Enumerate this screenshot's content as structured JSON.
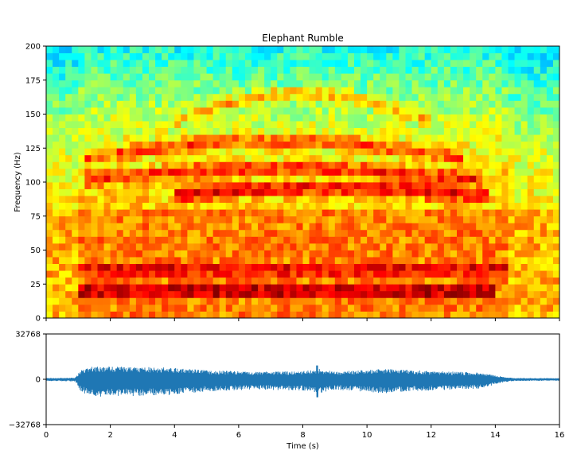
{
  "chart_data": [
    {
      "type": "heatmap",
      "title": "Elephant Rumble",
      "xlabel": "",
      "ylabel": "Frequency (Hz)",
      "xlim": [
        0,
        16
      ],
      "ylim": [
        0,
        200
      ],
      "y_ticks": [
        "0",
        "25",
        "50",
        "75",
        "100",
        "125",
        "150",
        "175",
        "200"
      ],
      "x_tick_labels_shown": false,
      "colormap": "jet",
      "grid": false,
      "time_bins": 80,
      "frequency_bins": 40,
      "bands": [
        {
          "f0": 20,
          "f1": 20,
          "t0": 1.0,
          "t1": 14.0,
          "level": 0.98
        },
        {
          "f0": 36,
          "f1": 36,
          "t0": 1.0,
          "t1": 14.4,
          "level": 0.92
        },
        {
          "f0": 56,
          "f1": 58,
          "t0": 1.0,
          "t1": 14.5,
          "level": 0.74
        },
        {
          "f0": 75,
          "f1": 78,
          "t0": 1.0,
          "t1": 14.5,
          "level": 0.76
        },
        {
          "f0": 90,
          "f1": 96,
          "t0": 4.0,
          "t1": 13.8,
          "level": 0.9
        },
        {
          "f0": 102,
          "f1": 110,
          "t0": 1.2,
          "t1": 13.5,
          "level": 0.86
        },
        {
          "f0": 118,
          "f1": 130,
          "t0": 1.2,
          "t1": 13.0,
          "level": 0.82
        },
        {
          "f0": 145,
          "f1": 165,
          "t0": 4.0,
          "t1": 12.0,
          "level": 0.72
        }
      ]
    },
    {
      "type": "line",
      "title": "",
      "xlabel": "Time (s)",
      "ylabel": "",
      "xlim": [
        0,
        16
      ],
      "ylim": [
        -32768,
        32768
      ],
      "x_ticks": [
        "0",
        "2",
        "4",
        "6",
        "8",
        "10",
        "12",
        "14",
        "16"
      ],
      "y_ticks": [
        "−32768",
        "0",
        "32768"
      ],
      "color": "#1f77b4",
      "grid": false,
      "envelope": {
        "t": [
          0,
          0.9,
          1.1,
          1.5,
          2.5,
          4.0,
          5.0,
          6.5,
          8.0,
          8.5,
          9.0,
          10.5,
          12.0,
          13.5,
          14.3,
          14.6,
          16
        ],
        "amp": [
          900,
          1100,
          7000,
          9500,
          9000,
          8500,
          6500,
          5500,
          6000,
          7500,
          5500,
          7500,
          6000,
          5000,
          1500,
          900,
          800
        ]
      },
      "spike": {
        "t": 8.45,
        "peak": 10000,
        "trough": -13000
      }
    }
  ]
}
